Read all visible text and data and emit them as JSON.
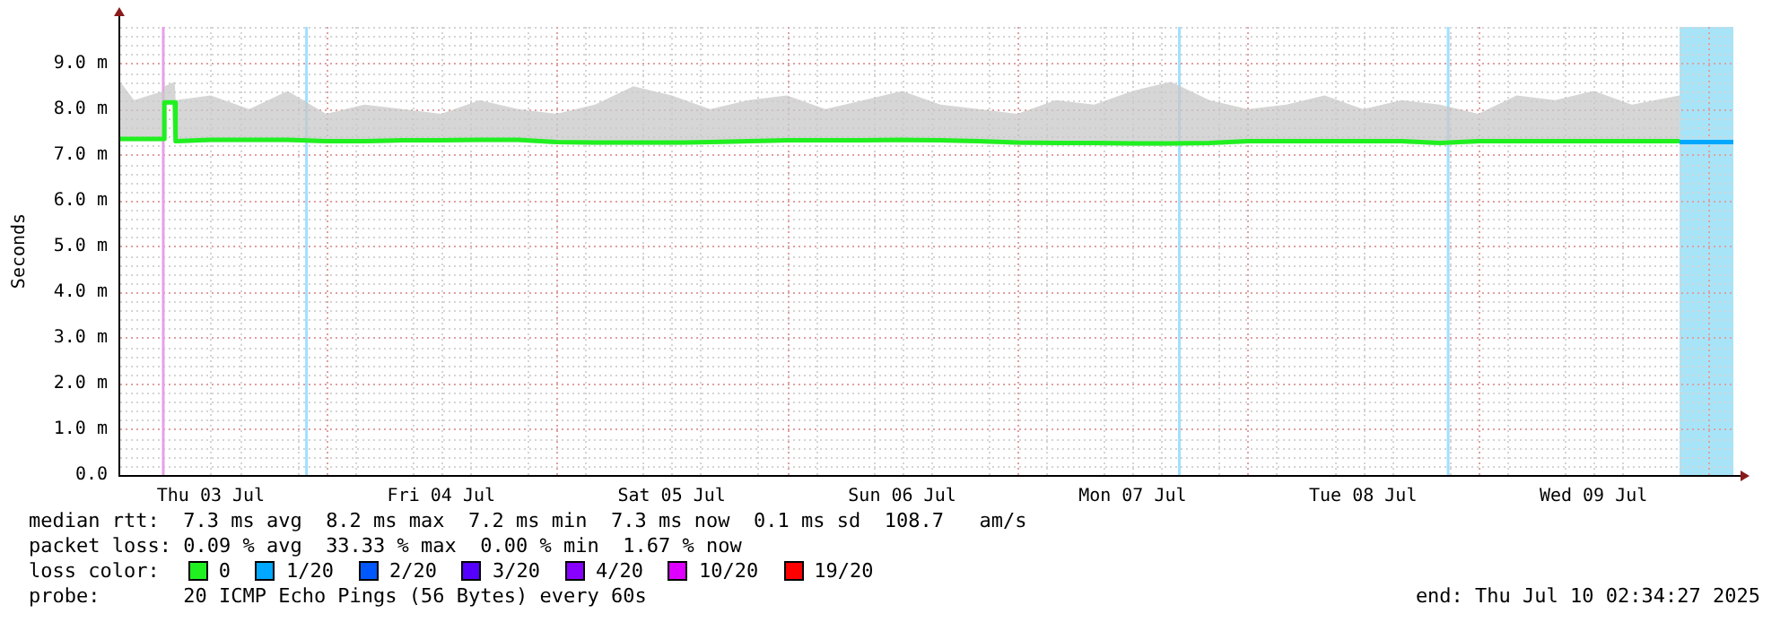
{
  "chart_data": {
    "type": "line",
    "ylabel": "Seconds",
    "legend_title": "loss color:",
    "legend": "bottom",
    "grid": true,
    "marker": "none",
    "line_style": "solid",
    "xlim": [
      "2025-07-03T02:34",
      "2025-07-10T02:34"
    ],
    "xticks": [
      {
        "value": "2025-07-03T12:00",
        "label": "Thu 03 Jul"
      },
      {
        "value": "2025-07-04T00:00",
        "label": null
      },
      {
        "value": "2025-07-04T12:00",
        "label": "Fri 04 Jul"
      },
      {
        "value": "2025-07-05T00:00",
        "label": null
      },
      {
        "value": "2025-07-05T12:00",
        "label": "Sat 05 Jul"
      },
      {
        "value": "2025-07-06T00:00",
        "label": null
      },
      {
        "value": "2025-07-06T12:00",
        "label": "Sun 06 Jul"
      },
      {
        "value": "2025-07-07T00:00",
        "label": null
      },
      {
        "value": "2025-07-07T12:00",
        "label": "Mon 07 Jul"
      },
      {
        "value": "2025-07-08T00:00",
        "label": null
      },
      {
        "value": "2025-07-08T12:00",
        "label": "Tue 08 Jul"
      },
      {
        "value": "2025-07-09T00:00",
        "label": null
      },
      {
        "value": "2025-07-09T12:00",
        "label": "Wed 09 Jul"
      },
      {
        "value": "2025-07-10T00:00",
        "label": null
      }
    ],
    "ylim": [
      0,
      9.8
    ],
    "yticks": [
      {
        "value": 0,
        "label": "0.0"
      },
      {
        "value": 1,
        "label": "1.0 m"
      },
      {
        "value": 2,
        "label": "2.0 m"
      },
      {
        "value": 3,
        "label": "3.0 m"
      },
      {
        "value": 4,
        "label": "4.0 m"
      },
      {
        "value": 5,
        "label": "5.0 m"
      },
      {
        "value": 6,
        "label": "6.0 m"
      },
      {
        "value": 7,
        "label": "7.0 m"
      },
      {
        "value": 8,
        "label": "8.0 m"
      },
      {
        "value": 9,
        "label": "9.0 m"
      }
    ],
    "series": [
      {
        "name": "0",
        "color": "#20f020",
        "x": [
          "2025-07-03T02:34",
          "2025-07-03T04:00",
          "2025-07-03T07:05",
          "2025-07-03T07:10",
          "2025-07-03T08:15",
          "2025-07-03T08:20",
          "2025-07-03T12:00",
          "2025-07-03T16:00",
          "2025-07-03T20:00",
          "2025-07-04T00:00",
          "2025-07-04T04:00",
          "2025-07-04T08:00",
          "2025-07-04T12:00",
          "2025-07-04T16:00",
          "2025-07-04T20:00",
          "2025-07-05T00:00",
          "2025-07-05T04:00",
          "2025-07-05T08:00",
          "2025-07-05T12:00",
          "2025-07-05T16:00",
          "2025-07-05T20:00",
          "2025-07-06T00:00",
          "2025-07-06T04:00",
          "2025-07-06T08:00",
          "2025-07-06T12:00",
          "2025-07-06T16:00",
          "2025-07-06T20:00",
          "2025-07-07T00:00",
          "2025-07-07T04:00",
          "2025-07-07T08:00",
          "2025-07-07T12:00",
          "2025-07-07T16:00",
          "2025-07-07T20:00",
          "2025-07-08T00:00",
          "2025-07-08T04:00",
          "2025-07-08T08:00",
          "2025-07-08T12:00",
          "2025-07-08T16:00",
          "2025-07-08T20:00",
          "2025-07-09T00:00",
          "2025-07-09T04:00",
          "2025-07-09T08:00",
          "2025-07-09T12:00",
          "2025-07-09T16:00",
          "2025-07-09T20:58"
        ],
        "values": [
          7.35,
          7.35,
          7.35,
          8.15,
          8.15,
          7.3,
          7.33,
          7.33,
          7.33,
          7.3,
          7.3,
          7.32,
          7.32,
          7.33,
          7.33,
          7.28,
          7.27,
          7.27,
          7.27,
          7.28,
          7.3,
          7.32,
          7.32,
          7.32,
          7.33,
          7.32,
          7.3,
          7.27,
          7.26,
          7.26,
          7.25,
          7.25,
          7.26,
          7.3,
          7.3,
          7.3,
          7.3,
          7.3,
          7.26,
          7.3,
          7.3,
          7.3,
          7.3,
          7.3,
          7.3
        ],
        "lower": [
          7.3,
          7.3,
          7.3,
          8.1,
          8.1,
          7.25,
          7.28,
          7.28,
          7.28,
          7.25,
          7.25,
          7.27,
          7.27,
          7.28,
          7.28,
          7.23,
          7.22,
          7.22,
          7.22,
          7.23,
          7.25,
          7.27,
          7.27,
          7.27,
          7.28,
          7.27,
          7.25,
          7.22,
          7.21,
          7.21,
          7.2,
          7.2,
          7.21,
          7.25,
          7.25,
          7.25,
          7.25,
          7.25,
          7.21,
          7.25,
          7.25,
          7.25,
          7.25,
          7.25,
          7.25
        ],
        "upper": [
          8.6,
          8.2,
          8.4,
          8.5,
          8.6,
          8.2,
          8.3,
          8.0,
          8.4,
          7.9,
          8.1,
          8.0,
          7.9,
          8.2,
          8.0,
          7.9,
          8.1,
          8.5,
          8.3,
          8.0,
          8.2,
          8.3,
          8.0,
          8.2,
          8.4,
          8.1,
          8.0,
          7.9,
          8.2,
          8.1,
          8.4,
          8.6,
          8.2,
          8.0,
          8.1,
          8.3,
          8.0,
          8.2,
          8.1,
          7.9,
          8.3,
          8.2,
          8.4,
          8.1,
          8.3
        ]
      },
      {
        "name": "1/20",
        "color": "#00a8ff",
        "x": [
          "2025-07-09T20:58",
          "2025-07-10T02:34"
        ],
        "values": [
          7.28,
          7.28
        ]
      },
      {
        "name": "2/20",
        "color": "#0059ff"
      },
      {
        "name": "3/20",
        "color": "#5500ff"
      },
      {
        "name": "4/20",
        "color": "#8800ff"
      },
      {
        "name": "10/20",
        "color": "#dd00ff"
      },
      {
        "name": "19/20",
        "color": "#ff0000"
      }
    ],
    "ref_lines": [
      {
        "axis": "x",
        "value": "2025-07-03T07:03",
        "color": "#e8a0e8"
      },
      {
        "axis": "x",
        "value": "2025-07-03T21:58",
        "color": "#a0e0ff"
      },
      {
        "axis": "x",
        "value": "2025-07-07T16:52",
        "color": "#a0e0ff"
      },
      {
        "axis": "x",
        "value": "2025-07-08T20:52",
        "color": "#a0e0ff"
      }
    ],
    "bands": [
      {
        "axis": "x",
        "from": "2025-07-09T20:58",
        "to": "2025-07-10T02:34",
        "color": "#a8e4f8"
      }
    ],
    "annotations": [
      "median rtt:  7.3 ms avg  8.2 ms max  7.2 ms min  7.3 ms now  0.1 ms sd  108.7   am/s",
      "packet loss: 0.09 % avg  33.33 % max  0.00 % min  1.67 % now",
      "probe:       20 ICMP Echo Pings (56 Bytes) every 60s",
      "end: Thu Jul 10 02:34:27 2025"
    ]
  }
}
